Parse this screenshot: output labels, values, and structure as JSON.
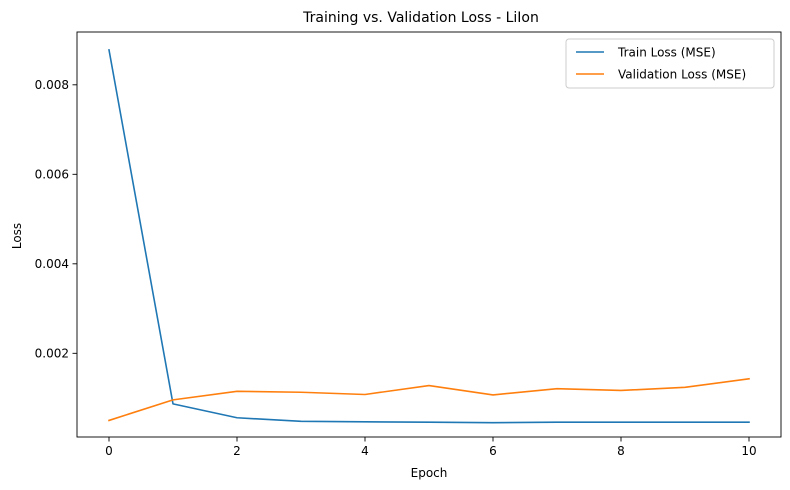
{
  "chart_data": {
    "type": "line",
    "title": "Training vs. Validation Loss - LiIon",
    "xlabel": "Epoch",
    "ylabel": "Loss",
    "xlim": [
      -0.5,
      10.5
    ],
    "ylim": [
      0.00013,
      0.00918
    ],
    "xticks": [
      0,
      2,
      4,
      6,
      8,
      10
    ],
    "xtick_labels": [
      "0",
      "2",
      "4",
      "6",
      "8",
      "10"
    ],
    "yticks": [
      0.002,
      0.004,
      0.006,
      0.008
    ],
    "ytick_labels": [
      "0.002",
      "0.004",
      "0.006",
      "0.008"
    ],
    "grid": false,
    "legend_position": "top-right",
    "x": [
      0,
      1,
      2,
      3,
      4,
      5,
      6,
      7,
      8,
      9,
      10
    ],
    "series": [
      {
        "name": "Train Loss (MSE)",
        "color": "#1f77b4",
        "values": [
          0.00878,
          0.00087,
          0.00056,
          0.00048,
          0.00047,
          0.00046,
          0.00045,
          0.00046,
          0.00046,
          0.00046,
          0.00046
        ]
      },
      {
        "name": "Validation Loss (MSE)",
        "color": "#ff7f0e",
        "values": [
          0.0005,
          0.00096,
          0.00115,
          0.00113,
          0.00108,
          0.00128,
          0.00107,
          0.00121,
          0.00117,
          0.00124,
          0.00143
        ]
      }
    ]
  }
}
